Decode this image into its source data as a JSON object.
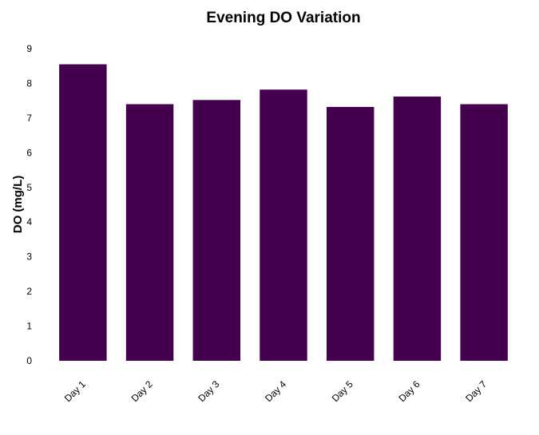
{
  "chart_data": {
    "type": "bar",
    "title": "Evening DO Variation",
    "xlabel": "",
    "ylabel": "DO (mg/L)",
    "categories": [
      "Day 1",
      "Day 2",
      "Day 3",
      "Day 4",
      "Day 5",
      "Day 6",
      "Day 7"
    ],
    "values": [
      8.55,
      7.4,
      7.52,
      7.82,
      7.32,
      7.62,
      7.4
    ],
    "ylim": [
      0,
      9
    ],
    "yticks": [
      "0",
      "1",
      "2",
      "3",
      "4",
      "5",
      "6",
      "7",
      "8",
      "9"
    ],
    "grid": false,
    "bar_color": "#44004e"
  }
}
